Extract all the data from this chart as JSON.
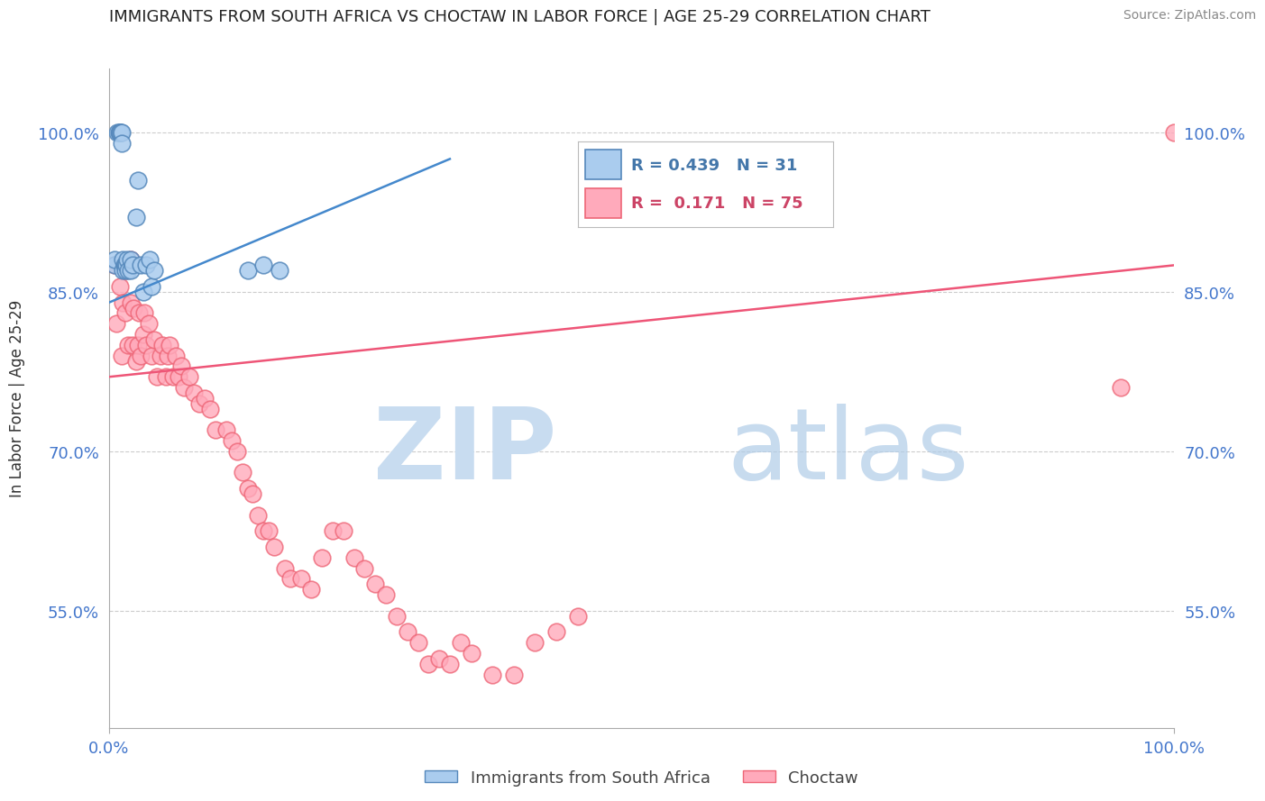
{
  "title": "IMMIGRANTS FROM SOUTH AFRICA VS CHOCTAW IN LABOR FORCE | AGE 25-29 CORRELATION CHART",
  "source_text": "Source: ZipAtlas.com",
  "ylabel": "In Labor Force | Age 25-29",
  "xlim": [
    0,
    1
  ],
  "ylim": [
    0.44,
    1.06
  ],
  "ytick_labels": [
    "55.0%",
    "70.0%",
    "85.0%",
    "100.0%"
  ],
  "ytick_values": [
    0.55,
    0.7,
    0.85,
    1.0
  ],
  "xtick_labels": [
    "0.0%",
    "100.0%"
  ],
  "xtick_values": [
    0,
    1
  ],
  "tick_label_color": "#4477CC",
  "watermark_zip": "ZIP",
  "watermark_atlas": "atlas",
  "watermark_color": "#D0E8F8",
  "blue_scatter_x": [
    0.005,
    0.005,
    0.008,
    0.009,
    0.01,
    0.01,
    0.011,
    0.012,
    0.012,
    0.013,
    0.013,
    0.014,
    0.015,
    0.015,
    0.016,
    0.017,
    0.018,
    0.02,
    0.02,
    0.022,
    0.025,
    0.027,
    0.03,
    0.032,
    0.035,
    0.038,
    0.04,
    0.042,
    0.13,
    0.145,
    0.16
  ],
  "blue_scatter_y": [
    0.875,
    0.88,
    1.0,
    1.0,
    1.0,
    1.0,
    1.0,
    1.0,
    0.99,
    0.87,
    0.88,
    0.875,
    0.875,
    0.87,
    0.875,
    0.88,
    0.87,
    0.87,
    0.88,
    0.875,
    0.92,
    0.955,
    0.875,
    0.85,
    0.875,
    0.88,
    0.855,
    0.87,
    0.87,
    0.875,
    0.87
  ],
  "pink_scatter_x": [
    0.005,
    0.007,
    0.01,
    0.012,
    0.013,
    0.015,
    0.016,
    0.018,
    0.02,
    0.02,
    0.022,
    0.023,
    0.025,
    0.027,
    0.028,
    0.03,
    0.032,
    0.033,
    0.035,
    0.037,
    0.04,
    0.042,
    0.045,
    0.048,
    0.05,
    0.053,
    0.055,
    0.057,
    0.06,
    0.063,
    0.065,
    0.068,
    0.07,
    0.075,
    0.08,
    0.085,
    0.09,
    0.095,
    0.1,
    0.11,
    0.115,
    0.12,
    0.125,
    0.13,
    0.135,
    0.14,
    0.145,
    0.15,
    0.155,
    0.165,
    0.17,
    0.18,
    0.19,
    0.2,
    0.21,
    0.22,
    0.23,
    0.24,
    0.25,
    0.26,
    0.27,
    0.28,
    0.29,
    0.3,
    0.31,
    0.32,
    0.33,
    0.34,
    0.36,
    0.38,
    0.4,
    0.42,
    0.44,
    0.95,
    1.0
  ],
  "pink_scatter_y": [
    0.875,
    0.82,
    0.855,
    0.79,
    0.84,
    0.83,
    0.87,
    0.8,
    0.84,
    0.88,
    0.8,
    0.835,
    0.785,
    0.8,
    0.83,
    0.79,
    0.81,
    0.83,
    0.8,
    0.82,
    0.79,
    0.805,
    0.77,
    0.79,
    0.8,
    0.77,
    0.79,
    0.8,
    0.77,
    0.79,
    0.77,
    0.78,
    0.76,
    0.77,
    0.755,
    0.745,
    0.75,
    0.74,
    0.72,
    0.72,
    0.71,
    0.7,
    0.68,
    0.665,
    0.66,
    0.64,
    0.625,
    0.625,
    0.61,
    0.59,
    0.58,
    0.58,
    0.57,
    0.6,
    0.625,
    0.625,
    0.6,
    0.59,
    0.575,
    0.565,
    0.545,
    0.53,
    0.52,
    0.5,
    0.505,
    0.5,
    0.52,
    0.51,
    0.49,
    0.49,
    0.52,
    0.53,
    0.545,
    0.76,
    1.0
  ],
  "blue_trend_x": [
    0.0,
    0.32
  ],
  "blue_trend_y": [
    0.84,
    0.975
  ],
  "pink_trend_x": [
    0.0,
    1.0
  ],
  "pink_trend_y": [
    0.77,
    0.875
  ],
  "blue_color_face": "#AACCEE",
  "blue_color_edge": "#5588BB",
  "pink_color_face": "#FFAABB",
  "pink_color_edge": "#EE6677",
  "blue_line_color": "#4488CC",
  "pink_line_color": "#EE5577"
}
